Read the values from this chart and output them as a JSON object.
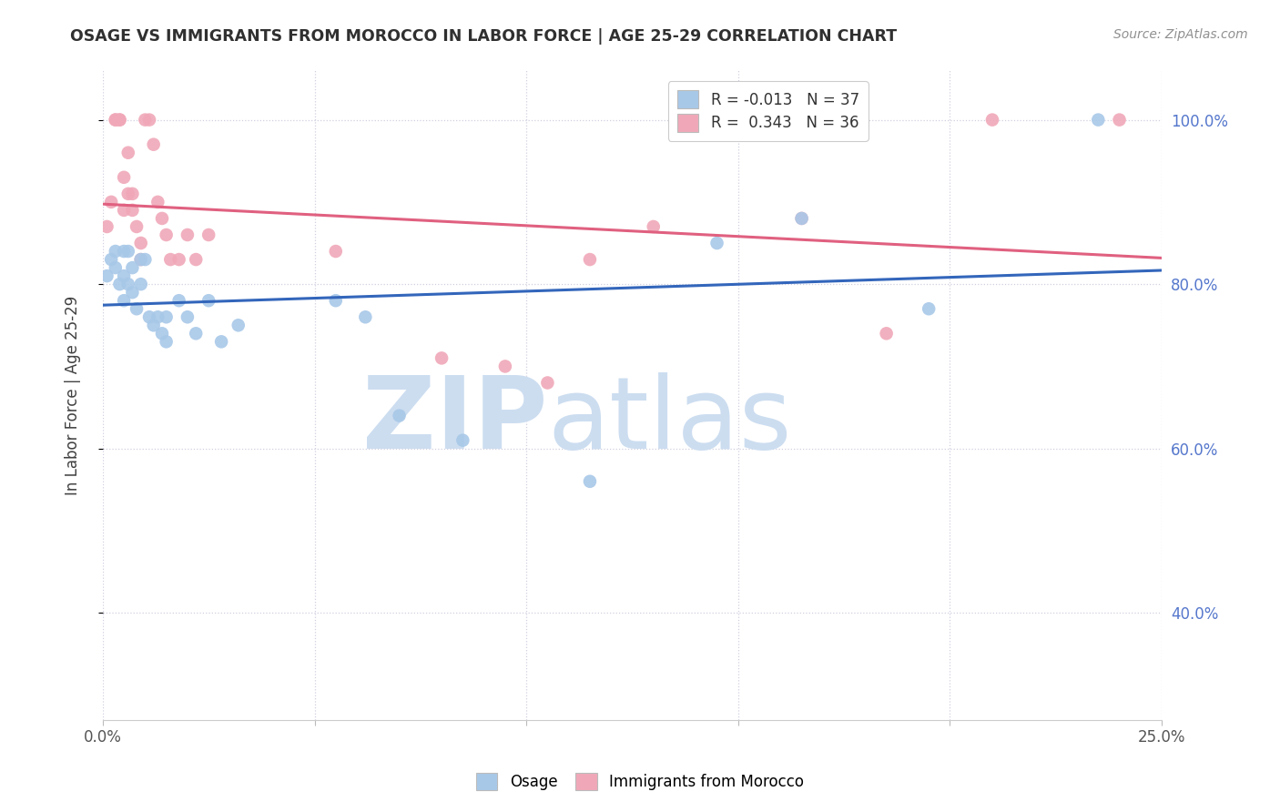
{
  "title": "OSAGE VS IMMIGRANTS FROM MOROCCO IN LABOR FORCE | AGE 25-29 CORRELATION CHART",
  "source": "Source: ZipAtlas.com",
  "ylabel": "In Labor Force | Age 25-29",
  "xlim": [
    0.0,
    0.25
  ],
  "ylim": [
    0.27,
    1.06
  ],
  "xticks": [
    0.0,
    0.05,
    0.1,
    0.15,
    0.2,
    0.25
  ],
  "xtick_labels": [
    "0.0%",
    "",
    "",
    "",
    "",
    "25.0%"
  ],
  "ytick_labels_right": [
    "100.0%",
    "80.0%",
    "60.0%",
    "40.0%"
  ],
  "ytick_vals": [
    1.0,
    0.8,
    0.6,
    0.4
  ],
  "watermark_zip": "ZIP",
  "watermark_atlas": "atlas",
  "legend_r1": "R = -0.013",
  "legend_n1": "N = 37",
  "legend_r2": "R =  0.343",
  "legend_n2": "N = 36",
  "blue_color": "#a8c8e8",
  "pink_color": "#f0a8b8",
  "blue_line_color": "#3366bb",
  "pink_line_color": "#e06080",
  "watermark_color": "#ccddf0",
  "grid_color": "#d0d0e0",
  "title_color": "#303030",
  "source_color": "#909090",
  "right_axis_color": "#5577cc",
  "blue_x": [
    0.001,
    0.002,
    0.003,
    0.003,
    0.004,
    0.005,
    0.005,
    0.005,
    0.006,
    0.006,
    0.007,
    0.007,
    0.008,
    0.009,
    0.009,
    0.01,
    0.011,
    0.012,
    0.013,
    0.014,
    0.015,
    0.015,
    0.018,
    0.02,
    0.022,
    0.025,
    0.028,
    0.032,
    0.055,
    0.062,
    0.07,
    0.085,
    0.115,
    0.145,
    0.165,
    0.195,
    0.235
  ],
  "blue_y": [
    0.81,
    0.83,
    0.84,
    0.82,
    0.8,
    0.84,
    0.81,
    0.78,
    0.84,
    0.8,
    0.82,
    0.79,
    0.77,
    0.83,
    0.8,
    0.83,
    0.76,
    0.75,
    0.76,
    0.74,
    0.76,
    0.73,
    0.78,
    0.76,
    0.74,
    0.78,
    0.73,
    0.75,
    0.78,
    0.76,
    0.64,
    0.61,
    0.56,
    0.85,
    0.88,
    0.77,
    1.0
  ],
  "pink_x": [
    0.001,
    0.002,
    0.003,
    0.003,
    0.004,
    0.004,
    0.005,
    0.005,
    0.006,
    0.006,
    0.007,
    0.007,
    0.008,
    0.009,
    0.009,
    0.01,
    0.011,
    0.012,
    0.013,
    0.014,
    0.015,
    0.016,
    0.018,
    0.02,
    0.022,
    0.025,
    0.055,
    0.08,
    0.095,
    0.105,
    0.115,
    0.13,
    0.165,
    0.185,
    0.21,
    0.24
  ],
  "pink_y": [
    0.87,
    0.9,
    1.0,
    1.0,
    1.0,
    1.0,
    0.93,
    0.89,
    0.96,
    0.91,
    0.91,
    0.89,
    0.87,
    0.85,
    0.83,
    1.0,
    1.0,
    0.97,
    0.9,
    0.88,
    0.86,
    0.83,
    0.83,
    0.86,
    0.83,
    0.86,
    0.84,
    0.71,
    0.7,
    0.68,
    0.83,
    0.87,
    0.88,
    0.74,
    1.0,
    1.0
  ]
}
